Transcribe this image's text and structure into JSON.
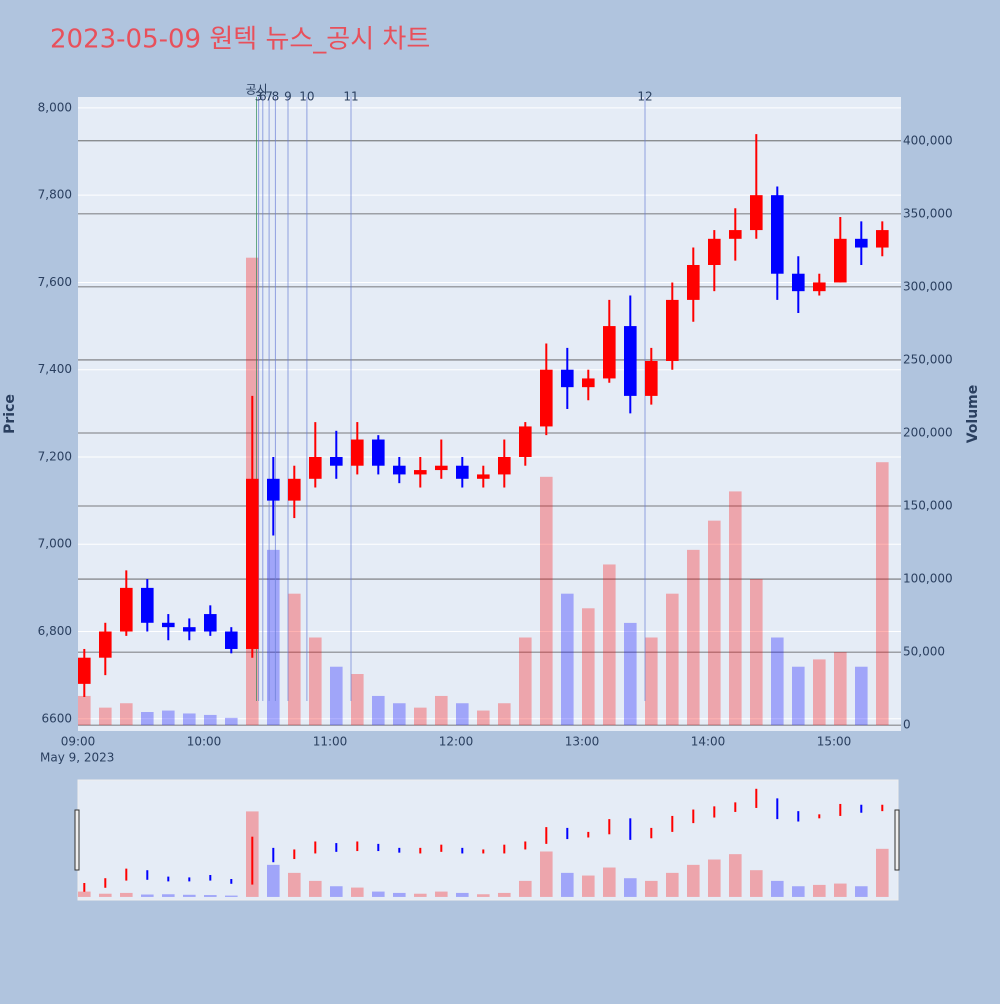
{
  "chart_data": {
    "type": "candlestick",
    "title": "2023-05-09 원텍 뉴스_공시 차트",
    "x_sublabel": "May 9, 2023",
    "ylabel": "Price",
    "y2label": "Volume",
    "x": [
      "09:00",
      "09:10",
      "09:20",
      "09:30",
      "09:40",
      "09:50",
      "10:00",
      "10:10",
      "10:20",
      "10:30",
      "10:40",
      "10:50",
      "11:00",
      "11:10",
      "11:20",
      "11:30",
      "11:40",
      "11:50",
      "12:00",
      "12:10",
      "12:20",
      "12:30",
      "12:40",
      "12:50",
      "13:00",
      "13:10",
      "13:20",
      "13:30",
      "13:40",
      "13:50",
      "14:00",
      "14:10",
      "14:20",
      "14:30",
      "14:40",
      "14:50",
      "15:00",
      "15:10",
      "15:20"
    ],
    "open": [
      6680,
      6740,
      6800,
      6900,
      6820,
      6810,
      6840,
      6800,
      6760,
      7150,
      7100,
      7150,
      7200,
      7180,
      7240,
      7180,
      7160,
      7170,
      7180,
      7150,
      7160,
      7200,
      7270,
      7400,
      7360,
      7380,
      7500,
      7340,
      7420,
      7560,
      7640,
      7700,
      7720,
      7800,
      7620,
      7580,
      7600,
      7700,
      7680
    ],
    "high": [
      6760,
      6820,
      6940,
      6920,
      6840,
      6830,
      6860,
      6810,
      7340,
      7200,
      7180,
      7280,
      7260,
      7280,
      7250,
      7200,
      7200,
      7240,
      7200,
      7180,
      7240,
      7280,
      7460,
      7450,
      7400,
      7560,
      7570,
      7450,
      7600,
      7680,
      7720,
      7770,
      7940,
      7820,
      7660,
      7620,
      7750,
      7740,
      7740
    ],
    "low": [
      6650,
      6700,
      6790,
      6800,
      6780,
      6780,
      6790,
      6750,
      6740,
      7020,
      7060,
      7130,
      7150,
      7160,
      7160,
      7140,
      7130,
      7150,
      7130,
      7130,
      7130,
      7180,
      7250,
      7310,
      7330,
      7370,
      7300,
      7320,
      7400,
      7510,
      7580,
      7650,
      7700,
      7560,
      7530,
      7570,
      7600,
      7640,
      7660
    ],
    "close": [
      6740,
      6800,
      6900,
      6820,
      6810,
      6800,
      6800,
      6760,
      7150,
      7100,
      7150,
      7200,
      7180,
      7240,
      7180,
      7160,
      7170,
      7180,
      7150,
      7160,
      7200,
      7270,
      7400,
      7360,
      7380,
      7500,
      7340,
      7420,
      7560,
      7640,
      7700,
      7720,
      7800,
      7620,
      7580,
      7600,
      7700,
      7680,
      7720
    ],
    "volume": [
      20000,
      12000,
      15000,
      9000,
      10000,
      8000,
      7000,
      5000,
      320000,
      120000,
      90000,
      60000,
      40000,
      35000,
      20000,
      15000,
      12000,
      20000,
      15000,
      10000,
      15000,
      60000,
      170000,
      90000,
      80000,
      110000,
      70000,
      60000,
      90000,
      120000,
      140000,
      160000,
      100000,
      60000,
      40000,
      45000,
      50000,
      40000,
      180000
    ],
    "up_color": "#ff0000",
    "down_color": "#0000ff",
    "xlim": [
      "09:00",
      "15:30"
    ],
    "xticks": [
      "09:00",
      "10:00",
      "11:00",
      "12:00",
      "13:00",
      "14:00",
      "15:00"
    ],
    "ylim": [
      6572,
      8025
    ],
    "yticks": [
      6600,
      {
        "value": 6800,
        "label": "6,800"
      },
      {
        "value": 7000,
        "label": "7,000"
      },
      {
        "value": 7200,
        "label": "7,200"
      },
      {
        "value": 7400,
        "label": "7,400"
      },
      {
        "value": 7600,
        "label": "7,600"
      },
      {
        "value": 7800,
        "label": "7,800"
      },
      {
        "value": 8000,
        "label": "8,000"
      }
    ],
    "y2lim": [
      -4000,
      430000
    ],
    "y2ticks": [
      0,
      {
        "value": 50000,
        "label": "50,000"
      },
      {
        "value": 100000,
        "label": "100,000"
      },
      {
        "value": 150000,
        "label": "150,000"
      },
      {
        "value": 200000,
        "label": "200,000"
      },
      {
        "value": 250000,
        "label": "250,000"
      },
      {
        "value": 300000,
        "label": "300,000"
      },
      {
        "value": 350000,
        "label": "350,000"
      },
      {
        "value": 400000,
        "label": "400,000"
      }
    ],
    "annotations": [
      {
        "x": "10:25",
        "text": "공시"
      },
      {
        "x": "10:26",
        "text": "3"
      },
      {
        "x": "10:28",
        "text": "6"
      },
      {
        "x": "10:31",
        "text": "7"
      },
      {
        "x": "10:34",
        "text": "8"
      },
      {
        "x": "10:40",
        "text": "9"
      },
      {
        "x": "10:49",
        "text": "10"
      },
      {
        "x": "11:10",
        "text": "11"
      },
      {
        "x": "13:30",
        "text": "12"
      }
    ]
  }
}
